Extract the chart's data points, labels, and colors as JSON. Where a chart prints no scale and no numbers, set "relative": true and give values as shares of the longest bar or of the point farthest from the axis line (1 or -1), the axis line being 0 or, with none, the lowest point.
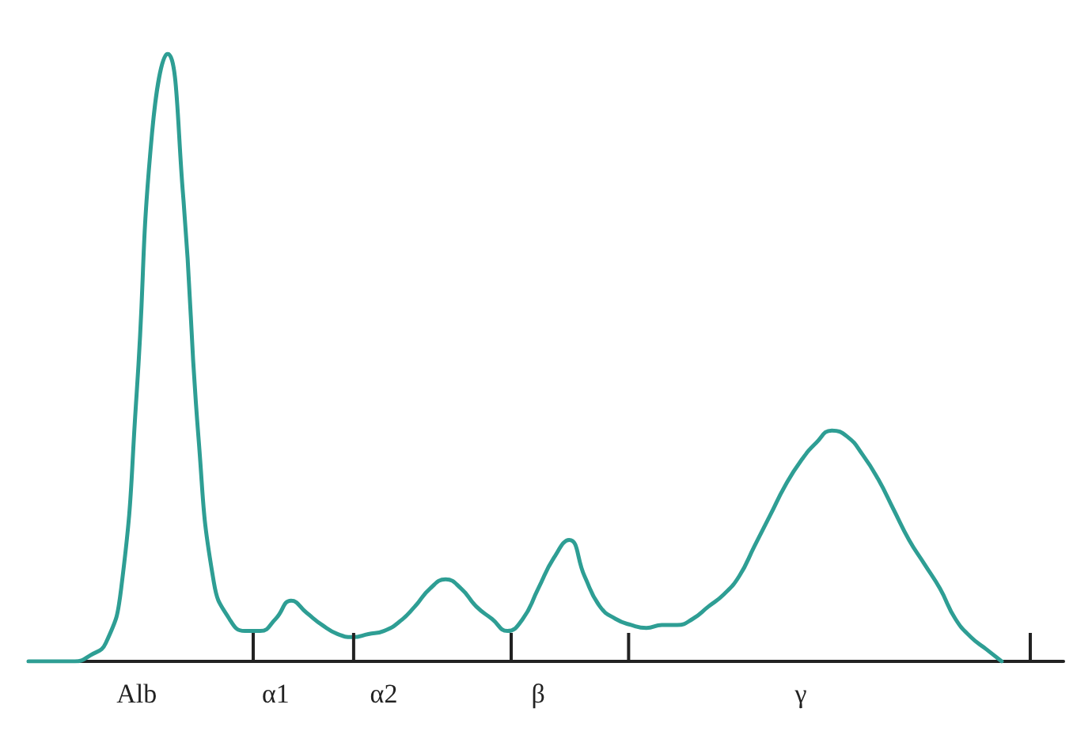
{
  "chart_data": {
    "type": "line",
    "relative": true,
    "categories": [
      null,
      null,
      null,
      null,
      null,
      null,
      null,
      "Alb",
      null,
      null,
      null,
      null,
      null,
      null,
      null,
      null,
      "α1",
      null,
      null,
      null,
      null,
      null,
      null,
      "α2",
      null,
      null,
      null,
      null,
      null,
      null,
      null,
      null,
      null,
      "β",
      null,
      null,
      null,
      null,
      null,
      null,
      null,
      null,
      null,
      null,
      null,
      null,
      null,
      null,
      null,
      null,
      "γ",
      null,
      null,
      null,
      null,
      null,
      null,
      null,
      null,
      null,
      null,
      null,
      null,
      null,
      null,
      null,
      null,
      null
    ],
    "series": [
      {
        "color": "#2e9e94",
        "values": [
          0,
          0,
          0,
          0,
          0.01,
          0.03,
          0.12,
          0.44,
          0.87,
          1,
          0.77,
          0.37,
          0.13,
          0.07,
          0.05,
          0.05,
          0.07,
          0.1,
          0.08,
          0.06,
          0.045,
          0.04,
          0.045,
          0.05,
          0.065,
          0.09,
          0.12,
          0.135,
          0.12,
          0.09,
          0.07,
          0.05,
          0.07,
          0.12,
          0.17,
          0.2,
          0.14,
          0.09,
          0.07,
          0.06,
          0.055,
          0.06,
          0.06,
          0.07,
          0.09,
          0.11,
          0.14,
          0.19,
          0.24,
          0.29,
          0.33,
          0.36,
          0.38,
          0.37,
          0.34,
          0.3,
          0.25,
          0.2,
          0.16,
          0.12,
          0.07,
          0.04,
          0.02,
          0,
          null,
          null,
          null,
          null
        ]
      }
    ],
    "marker": "none",
    "line_style": "solid",
    "grid": false
  }
}
